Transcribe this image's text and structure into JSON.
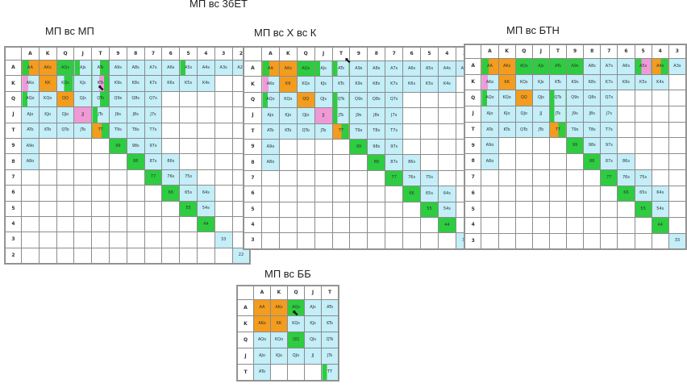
{
  "page_title": "МП вс 3бЕТ",
  "ranks": [
    "A",
    "K",
    "Q",
    "J",
    "T",
    "9",
    "8",
    "7",
    "6",
    "5",
    "4",
    "3",
    "2"
  ],
  "panels": [
    {
      "id": "mp",
      "title": "МП вс МП",
      "size": 13,
      "cells": {
        "AA": "go",
        "AKs": "o",
        "AQs": "g",
        "AJs": "gc",
        "ATs": "cg",
        "A9s": "c",
        "A8s": "c",
        "A7s": "c",
        "A6s": "c",
        "A5s": "gc",
        "A4s": "c",
        "A3s": "c",
        "A2s": "c",
        "AKo": "pc",
        "KK": "o",
        "KQs": "cg",
        "KJs": "c",
        "KTs": "gcp",
        "K9s": "c",
        "K8s": "c",
        "K7s": "c",
        "K6s": "c",
        "K5s": "c",
        "K4s": "c",
        "AQo": "gc",
        "KQo": "c",
        "QQ": "o",
        "QJs": "c",
        "QTs": "cg",
        "Q9s": "c",
        "Q8s": "c",
        "Q7s": "c",
        "AJo": "c",
        "KJo": "c",
        "QJo": "c",
        "JJ": "p",
        "JTs": "gc",
        "J9s": "c",
        "J8s": "c",
        "J7s": "c",
        "ATo": "c",
        "KTo": "c",
        "QTo": "c",
        "JTo": "c",
        "TT": "og",
        "T9s": "c",
        "T8s": "c",
        "T7s": "c",
        "A9o": "c",
        "99": "g",
        "98s": "c",
        "97s": "c",
        "A8o": "c",
        "88": "g",
        "87s": "c",
        "86s": "c",
        "77": "g",
        "76s": "c",
        "75s": "c",
        "66": "g",
        "65s": "c",
        "64s": "c",
        "55": "g",
        "54s": "c",
        "44": "g",
        "33": "c",
        "22": "c"
      }
    },
    {
      "id": "hjco",
      "title": "МП вс Х вс К",
      "size": 12,
      "cells": {
        "AA": "go",
        "AKs": "o",
        "AQs": "g",
        "AJs": "gc",
        "ATs": "gc",
        "A9s": "c",
        "A8s": "c",
        "A7s": "c",
        "A6s": "c",
        "A5s": "c",
        "A4s": "c",
        "A3s": "c",
        "AKo": "pc",
        "KK": "o",
        "KQs": "c",
        "KJs": "c",
        "KTs": "c",
        "K9s": "c",
        "K8s": "c",
        "K7s": "c",
        "K6s": "c",
        "K5s": "c",
        "K4s": "c",
        "AQo": "gc",
        "KQo": "c",
        "QQ": "o",
        "QJs": "c",
        "QTs": "gc",
        "Q9s": "c",
        "Q8s": "c",
        "Q7s": "c",
        "AJo": "c",
        "KJo": "c",
        "QJo": "c",
        "JJ": "p",
        "JTs": "gc",
        "J9s": "c",
        "J8s": "c",
        "J7s": "c",
        "ATo": "c",
        "KTo": "c",
        "QTo": "c",
        "JTo": "c",
        "TT": "og",
        "T9s": "c",
        "T8s": "c",
        "T7s": "c",
        "A9o": "c",
        "99": "g",
        "98s": "c",
        "97s": "c",
        "A8o": "c",
        "88": "g",
        "87s": "c",
        "86s": "c",
        "77": "g",
        "76s": "c",
        "75s": "c",
        "66": "g",
        "65s": "c",
        "64s": "c",
        "55": "g",
        "54s": "c",
        "44": "g",
        "33": "c"
      }
    },
    {
      "id": "btn",
      "title": "МП вс БТН",
      "size": 12,
      "cells": {
        "AA": "go",
        "AKs": "o",
        "AQs": "g",
        "AJs": "g",
        "ATs": "g",
        "A9s": "g",
        "A8s": "c",
        "A7s": "c",
        "A6s": "c",
        "A5s": "gp",
        "A4s": "og",
        "A3s": "c",
        "AKo": "pc",
        "KK": "o",
        "KQs": "c",
        "KJs": "c",
        "KTs": "c",
        "K9s": "c",
        "K8s": "c",
        "K7s": "c",
        "K6s": "c",
        "K5s": "c",
        "K4s": "c",
        "AQo": "gc",
        "KQo": "c",
        "QQ": "o",
        "QJs": "c",
        "QTs": "gc",
        "Q9s": "c",
        "Q8s": "c",
        "Q7s": "c",
        "AJo": "c",
        "KJo": "c",
        "QJo": "c",
        "JJ": "c",
        "JTs": "gc",
        "J9s": "c",
        "J8s": "c",
        "J7s": "c",
        "ATo": "c",
        "KTo": "c",
        "QTo": "c",
        "JTo": "c",
        "TT": "og",
        "T9s": "c",
        "T8s": "c",
        "T7s": "c",
        "A9o": "c",
        "99": "g",
        "98s": "c",
        "97s": "c",
        "A8o": "c",
        "88": "g",
        "87s": "c",
        "86s": "c",
        "77": "g",
        "76s": "c",
        "75s": "c",
        "66": "g",
        "65s": "c",
        "64s": "c",
        "55": "g",
        "54s": "c",
        "44": "g",
        "33": "c"
      }
    },
    {
      "id": "bb",
      "title": "МП вс ББ",
      "size": 5,
      "cells": {
        "AA": "o",
        "AKs": "o",
        "AQs": "g",
        "AJs": "c",
        "ATs": "c",
        "AKo": "o",
        "KK": "o",
        "KQs": "c",
        "KJs": "c",
        "KTs": "c",
        "AQo": "c",
        "KQo": "c",
        "QQ": "g",
        "QJs": "c",
        "QTs": "c",
        "AJo": "c",
        "KJo": "c",
        "QJo": "c",
        "JJ": "c",
        "JTs": "c",
        "ATo": "c",
        "TT": "gc"
      }
    }
  ]
}
